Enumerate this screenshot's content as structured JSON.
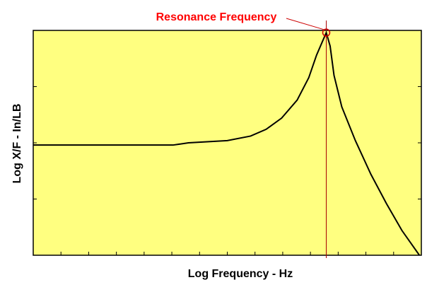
{
  "chart_data": {
    "type": "line",
    "title": "",
    "xlabel": "Log Frequency - Hz",
    "ylabel": "Log X/F  -  In/LB",
    "xlim": [
      0,
      10
    ],
    "ylim": [
      0,
      10
    ],
    "x_tick_count": 14,
    "y_tick_count": 4,
    "grid": false,
    "background": "#ffff80",
    "line_color": "#000000",
    "series": [
      {
        "values": [
          [
            0.0,
            4.9
          ],
          [
            3.6,
            4.9
          ],
          [
            4.0,
            5.0
          ],
          [
            5.0,
            5.1
          ],
          [
            5.6,
            5.3
          ],
          [
            6.0,
            5.6
          ],
          [
            6.4,
            6.1
          ],
          [
            6.8,
            6.9
          ],
          [
            7.1,
            7.9
          ],
          [
            7.3,
            8.9
          ],
          [
            7.45,
            9.5
          ],
          [
            7.55,
            9.9
          ],
          [
            7.65,
            9.3
          ],
          [
            7.75,
            8.0
          ],
          [
            7.95,
            6.6
          ],
          [
            8.3,
            5.1
          ],
          [
            8.7,
            3.6
          ],
          [
            9.1,
            2.3
          ],
          [
            9.5,
            1.1
          ],
          [
            9.95,
            0.0
          ]
        ]
      }
    ],
    "annotation": {
      "text": "Resonance Frequency",
      "color": "#ff0000",
      "marker_color": "#cc0000",
      "target": [
        7.55,
        9.9
      ]
    },
    "marker_line_x": 7.55
  }
}
